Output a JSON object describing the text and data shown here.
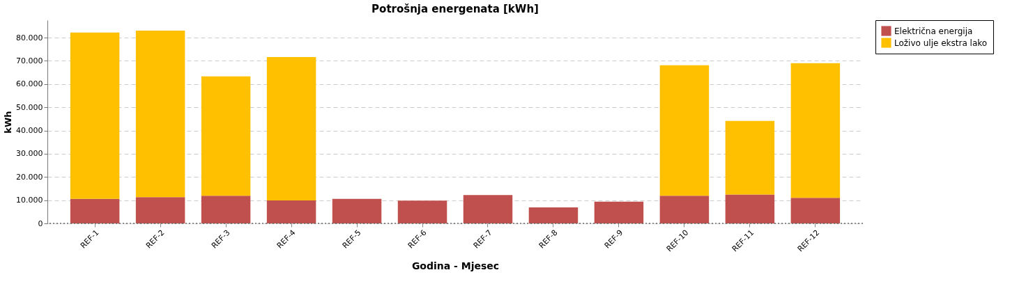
{
  "chart_data": {
    "type": "bar",
    "title": "Potrošnja energenata [kWh]",
    "xlabel": "Godina - Mjesec",
    "ylabel": "kWh",
    "categories": [
      "REF-1",
      "REF-2",
      "REF-3",
      "REF-4",
      "REF-5",
      "REF-6",
      "REF-7",
      "REF-8",
      "REF-9",
      "REF-10",
      "REF-11",
      "REF-12"
    ],
    "series": [
      {
        "name": "Električna energija",
        "color": "#c0504d",
        "values": [
          10600,
          11300,
          11900,
          9900,
          10600,
          9800,
          12200,
          6900,
          9400,
          11900,
          12400,
          11000
        ]
      },
      {
        "name": "Loživo ulje ekstra lako",
        "color": "#ffc000",
        "values": [
          71600,
          71700,
          51400,
          61700,
          0,
          0,
          0,
          0,
          0,
          56200,
          31700,
          58000
        ]
      }
    ],
    "stacked": true,
    "ylim": [
      0,
      87500
    ],
    "yticks": [
      {
        "value": 0,
        "label": "0"
      },
      {
        "value": 10000,
        "label": "10.000"
      },
      {
        "value": 20000,
        "label": "20.000"
      },
      {
        "value": 30000,
        "label": "30.000"
      },
      {
        "value": 40000,
        "label": "40.000"
      },
      {
        "value": 50000,
        "label": "50.000"
      },
      {
        "value": 60000,
        "label": "60.000"
      },
      {
        "value": 70000,
        "label": "70.000"
      },
      {
        "value": 80000,
        "label": "80.000"
      }
    ],
    "grid": "y",
    "legend": "right"
  }
}
